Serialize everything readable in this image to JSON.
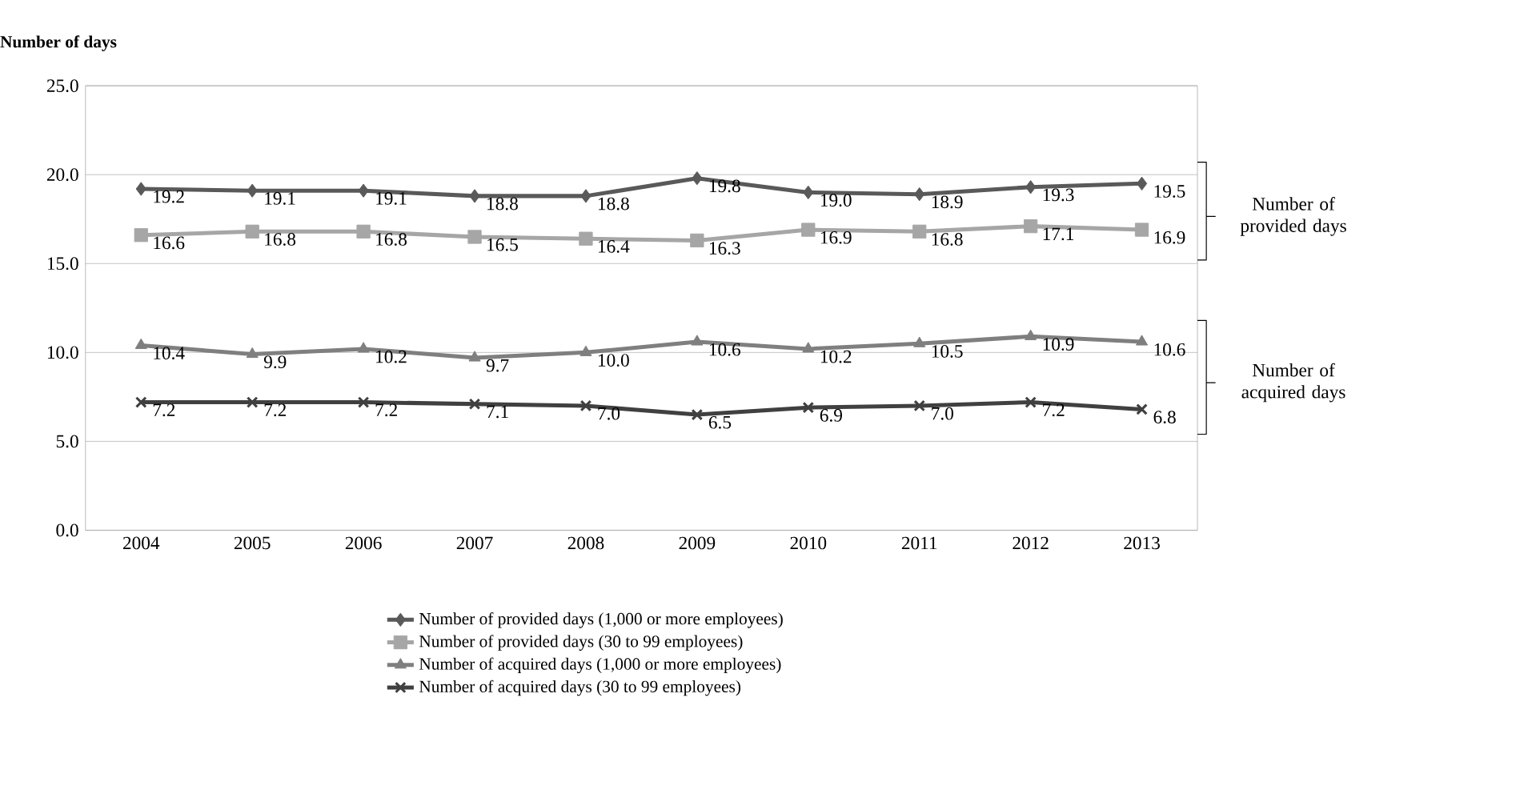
{
  "chart_data": {
    "type": "line",
    "ylabel": "Number of days",
    "categories": [
      "2004",
      "2005",
      "2006",
      "2007",
      "2008",
      "2009",
      "2010",
      "2011",
      "2012",
      "2013"
    ],
    "series": [
      {
        "name": "Number of provided days (1,000 or more employees)",
        "color": "#595959",
        "marker": "diamond",
        "values": [
          19.2,
          19.1,
          19.1,
          18.8,
          18.8,
          19.8,
          19.0,
          18.9,
          19.3,
          19.5
        ],
        "value_labels": [
          "19.2",
          "19.1",
          "19.1",
          "18.8",
          "18.8",
          "19.8",
          "19.0",
          "18.9",
          "19.3",
          "19.5"
        ]
      },
      {
        "name": "Number of provided days (30 to 99 employees)",
        "color": "#a6a6a6",
        "marker": "square",
        "values": [
          16.6,
          16.8,
          16.8,
          16.5,
          16.4,
          16.3,
          16.9,
          16.8,
          17.1,
          16.9
        ],
        "value_labels": [
          "16.6",
          "16.8",
          "16.8",
          "16.5",
          "16.4",
          "16.3",
          "16.9",
          "16.8",
          "17.1",
          "16.9"
        ]
      },
      {
        "name": "Number of acquired days (1,000 or more employees)",
        "color": "#7f7f7f",
        "marker": "triangle",
        "values": [
          10.4,
          9.9,
          10.2,
          9.7,
          10.0,
          10.6,
          10.2,
          10.5,
          10.9,
          10.6
        ],
        "value_labels": [
          "10.4",
          "9.9",
          "10.2",
          "9.7",
          "10.0",
          "10.6",
          "10.2",
          "10.5",
          "10.9",
          "10.6"
        ]
      },
      {
        "name": "Number of acquired days (30 to 99 employees)",
        "color": "#404040",
        "marker": "cross",
        "values": [
          7.2,
          7.2,
          7.2,
          7.1,
          7.0,
          6.5,
          6.9,
          7.0,
          7.2,
          6.8
        ],
        "value_labels": [
          "7.2",
          "7.2",
          "7.2",
          "7.1",
          "7.0",
          "6.5",
          "6.9",
          "7.0",
          "7.2",
          "6.8"
        ]
      }
    ],
    "ylim": [
      0,
      25
    ],
    "yticks": [
      {
        "value": 0,
        "label": "0.0"
      },
      {
        "value": 5,
        "label": "5.0"
      },
      {
        "value": 10,
        "label": "10.0"
      },
      {
        "value": 15,
        "label": "15.0"
      },
      {
        "value": 20,
        "label": "20.0"
      },
      {
        "value": 25,
        "label": "25.0"
      }
    ],
    "grid": "y",
    "legend": "bottom",
    "line_style": "solid",
    "annotations": [
      "Number of provided days",
      "Number of acquired days"
    ]
  }
}
